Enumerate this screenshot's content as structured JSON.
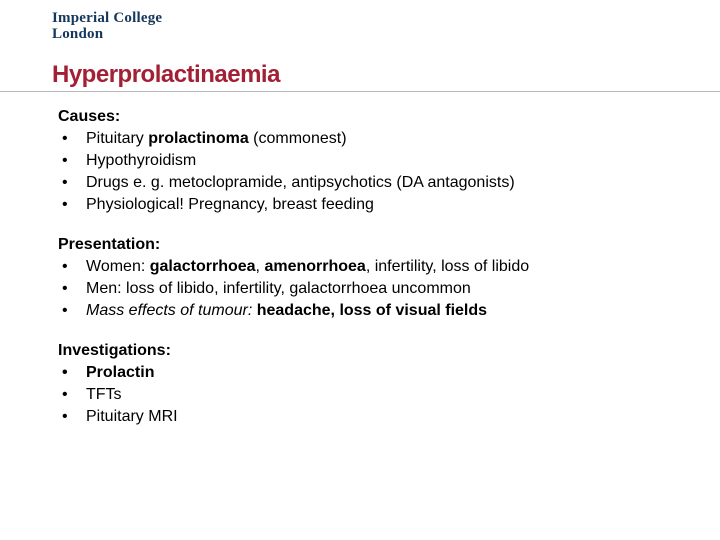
{
  "logo": {
    "line1": "Imperial College",
    "line2": "London"
  },
  "title": {
    "text": "Hyperprolactinaemia",
    "color": "#a31f34",
    "fontsize": 24
  },
  "style": {
    "heading_fontsize": 16,
    "body_fontsize": 16,
    "text_color": "#000000",
    "logo_color": "#14375a",
    "rule_color": "#b8b8b8",
    "background": "#ffffff"
  },
  "sections": {
    "causes": {
      "heading_pre": "Causes",
      "heading_post": ":",
      "items": {
        "i0_pre": "Pituitary ",
        "i0_b": "prolactinoma",
        "i0_post": " (commonest)",
        "i1": "Hypothyroidism",
        "i2": "Drugs e. g. metoclopramide, antipsychotics (DA antagonists)",
        "i3": "Physiological! Pregnancy, breast feeding"
      }
    },
    "presentation": {
      "heading": "Presentation:",
      "items": {
        "i0_pre": "Women: ",
        "i0_b1": "galactorrhoea",
        "i0_mid1": ", ",
        "i0_b2": "amenorrhoea",
        "i0_post": ", infertility, loss of libido",
        "i1": "Men: loss of libido, infertility, galactorrhoea uncommon",
        "i2_i": "Mass effects of tumour: ",
        "i2_b": "headache, loss of visual fields"
      }
    },
    "investigations": {
      "heading": "Investigations:",
      "items": {
        "i0": "Prolactin",
        "i1": "TFTs",
        "i2": "Pituitary MRI"
      }
    }
  }
}
